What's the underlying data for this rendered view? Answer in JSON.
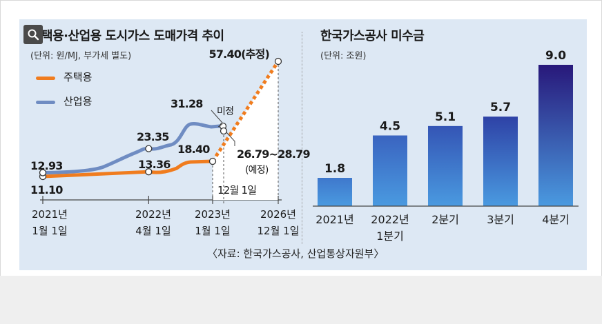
{
  "left_chart": {
    "title": "주택용·산업용 도시가스 도매가격 추이",
    "unit": "(단위: 원/MJ, 부가세 별도)",
    "legend": [
      {
        "label": "주택용",
        "color": "#f07c1e"
      },
      {
        "label": "산업용",
        "color": "#6f8cc2"
      }
    ],
    "x_ticks": [
      {
        "label": "2021년\n1월 1일"
      },
      {
        "label": "2022년\n4월 1일"
      },
      {
        "label": "2023년\n1월 1일"
      },
      {
        "label": "2026년\n12월 1일"
      }
    ],
    "annotations": {
      "industrial_start": "12.93",
      "residential_start": "11.10",
      "industrial_2022": "23.35",
      "residential_2022": "13.36",
      "industrial_peak": "31.28",
      "residential_2023": "18.40",
      "residential_2026": "57.40(추정)",
      "undecided": "미정",
      "industrial_range": "26.79~28.79",
      "planned": "(예정)",
      "dec1": "12월 1일"
    }
  },
  "right_chart": {
    "title": "한국가스공사 미수금",
    "unit": "(단위: 조원)"
  },
  "source": "〈자료: 한국가스공사, 산업통상자원부〉",
  "chart_data": [
    {
      "type": "line",
      "title": "주택용·산업용 도시가스 도매가격 추이",
      "ylabel": "원/MJ",
      "series": [
        {
          "name": "주택용",
          "x": [
            "2021-01-01",
            "2022-04-01",
            "2023-01-01",
            "2026-12-01"
          ],
          "values": [
            11.1,
            13.36,
            18.4,
            57.4
          ]
        },
        {
          "name": "산업용",
          "x": [
            "2021-01-01",
            "2022-04-01",
            "2023-01-01"
          ],
          "values": [
            12.93,
            23.35,
            31.28
          ]
        }
      ],
      "notes": [
        "산업용 12월 1일: 26.79~28.79 (예정)",
        "주택용 2026년 12월 1일: 57.40 (추정)"
      ]
    },
    {
      "type": "bar",
      "title": "한국가스공사 미수금",
      "ylabel": "조원",
      "categories": [
        "2021년",
        "2022년\n1분기",
        "2분기",
        "3분기",
        "4분기"
      ],
      "values": [
        1.8,
        4.5,
        5.1,
        5.7,
        9.0
      ],
      "ylim": [
        0,
        9.0
      ]
    }
  ]
}
